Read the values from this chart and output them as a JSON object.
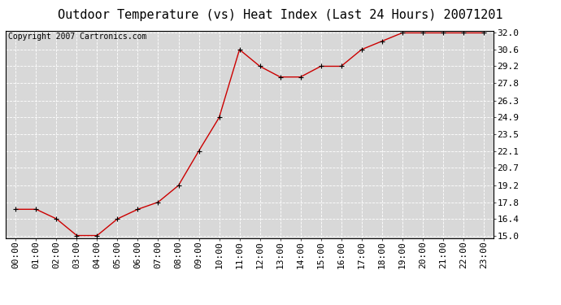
{
  "title": "Outdoor Temperature (vs) Heat Index (Last 24 Hours) 20071201",
  "copyright_text": "Copyright 2007 Cartronics.com",
  "x_labels": [
    "00:00",
    "01:00",
    "02:00",
    "03:00",
    "04:00",
    "05:00",
    "06:00",
    "07:00",
    "08:00",
    "09:00",
    "10:00",
    "11:00",
    "12:00",
    "13:00",
    "14:00",
    "15:00",
    "16:00",
    "17:00",
    "18:00",
    "19:00",
    "20:00",
    "21:00",
    "22:00",
    "23:00"
  ],
  "y_values": [
    17.2,
    17.2,
    16.4,
    15.0,
    15.0,
    16.4,
    17.2,
    17.8,
    19.2,
    22.1,
    24.9,
    30.6,
    29.2,
    28.3,
    28.3,
    29.2,
    29.2,
    30.6,
    31.3,
    32.0,
    32.0,
    32.0,
    32.0,
    32.0
  ],
  "y_ticks": [
    15.0,
    16.4,
    17.8,
    19.2,
    20.7,
    22.1,
    23.5,
    24.9,
    26.3,
    27.8,
    29.2,
    30.6,
    32.0
  ],
  "y_min": 15.0,
  "y_max": 32.0,
  "line_color": "#cc0000",
  "marker_color": "#000000",
  "background_color": "#ffffff",
  "plot_bg_color": "#d8d8d8",
  "grid_color": "#ffffff",
  "title_fontsize": 11,
  "copyright_fontsize": 7,
  "tick_fontsize": 8
}
